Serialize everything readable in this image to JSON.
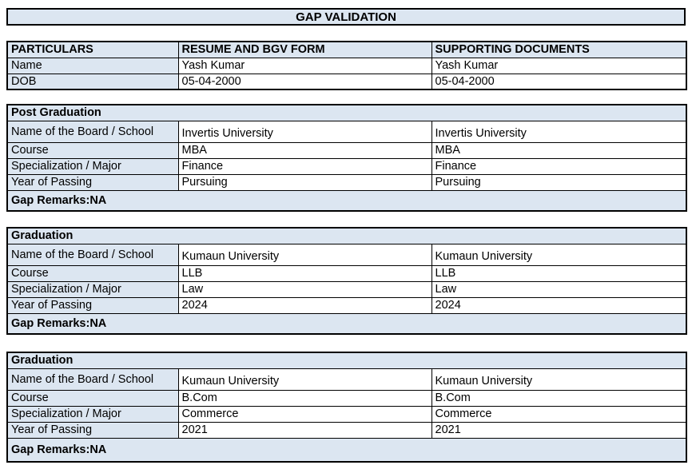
{
  "title": "GAP VALIDATION",
  "colors": {
    "header_fill": "#DCE6F1",
    "border": "#000000",
    "background": "#FFFFFF",
    "text": "#000000"
  },
  "summary_table": {
    "headers": [
      "PARTICULARS",
      "RESUME AND BGV FORM",
      "SUPPORTING DOCUMENTS"
    ],
    "rows": [
      {
        "label": "Name",
        "resume": "Yash Kumar",
        "supporting": "Yash Kumar"
      },
      {
        "label": "DOB",
        "resume": "05-04-2000",
        "supporting": "05-04-2000"
      }
    ]
  },
  "sections": [
    {
      "title": "Post Graduation",
      "rows": [
        {
          "label": "Name of the Board / School",
          "resume": "Invertis University",
          "supporting": "Invertis University"
        },
        {
          "label": "Course",
          "resume": "MBA",
          "supporting": "MBA"
        },
        {
          "label": "Specialization / Major",
          "resume": "Finance",
          "supporting": "Finance"
        },
        {
          "label": "Year of Passing",
          "resume": "Pursuing",
          "supporting": "Pursuing"
        }
      ],
      "gap_remarks": "Gap Remarks:NA"
    },
    {
      "title": "Graduation",
      "rows": [
        {
          "label": "Name of the Board / School",
          "resume": "Kumaun University",
          "supporting": "Kumaun University"
        },
        {
          "label": "Course",
          "resume": "LLB",
          "supporting": "LLB"
        },
        {
          "label": "Specialization / Major",
          "resume": "Law",
          "supporting": "Law"
        },
        {
          "label": "Year of Passing",
          "resume": "2024",
          "supporting": "2024"
        }
      ],
      "gap_remarks": "Gap Remarks:NA"
    },
    {
      "title": "Graduation",
      "rows": [
        {
          "label": "Name of the Board / School",
          "resume": "Kumaun University",
          "supporting": "Kumaun University"
        },
        {
          "label": "Course",
          "resume": "B.Com",
          "supporting": "B.Com"
        },
        {
          "label": "Specialization / Major",
          "resume": "Commerce",
          "supporting": "Commerce"
        },
        {
          "label": "Year of Passing",
          "resume": "2021",
          "supporting": "2021"
        }
      ],
      "gap_remarks": "Gap Remarks:NA"
    }
  ]
}
